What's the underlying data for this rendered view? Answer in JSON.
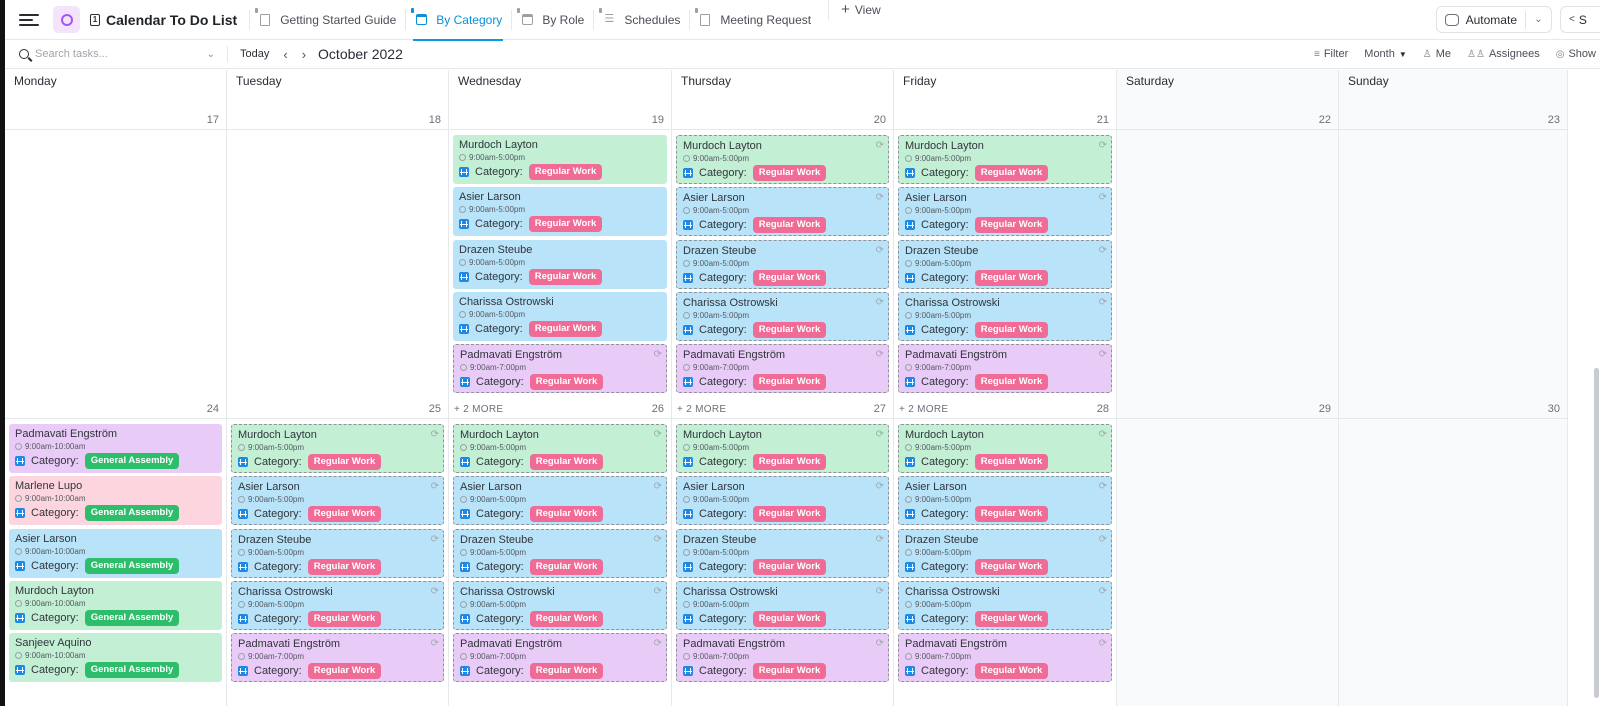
{
  "header": {
    "app_title": "Calendar To Do List",
    "tabs": [
      {
        "label": "Getting Started Guide",
        "icon": "doc-icon",
        "active": false
      },
      {
        "label": "By Category",
        "icon": "calendar-icon",
        "active": true
      },
      {
        "label": "By Role",
        "icon": "calendar-icon",
        "active": false
      },
      {
        "label": "Schedules",
        "icon": "list-icon",
        "active": false
      },
      {
        "label": "Meeting Request",
        "icon": "form-icon",
        "active": false
      }
    ],
    "add_view_label": "View",
    "automate_label": "Automate",
    "share_label": "S"
  },
  "toolbar": {
    "search_placeholder": "Search tasks...",
    "today_label": "Today",
    "month_label": "October 2022",
    "filter_label": "Filter",
    "view_mode_label": "Month",
    "me_label": "Me",
    "assignees_label": "Assignees",
    "show_label": "Show"
  },
  "colors": {
    "accent": "#0b9be3",
    "regular_work_tag": "#f06b95",
    "general_assembly_tag": "#2ebd6b",
    "card_green": "#c3efd5",
    "card_blue": "#b8e3f8",
    "card_purple": "#e9cbf7",
    "card_pink": "#fdd5de"
  },
  "calendar": {
    "day_names": [
      "Monday",
      "Tuesday",
      "Wednesday",
      "Thursday",
      "Friday",
      "Saturday",
      "Sunday"
    ],
    "category_label": "Category:",
    "weeks": [
      {
        "dates": [
          "17",
          "18",
          "19",
          "20",
          "21",
          "22",
          "23"
        ],
        "more": [
          null,
          null,
          null,
          null,
          null,
          null,
          null
        ],
        "days": [
          [],
          [],
          [
            {
              "name": "Murdoch Layton",
              "time": "9:00am-5:00pm",
              "color": "green",
              "tag": "Regular Work",
              "tag_type": "regular",
              "recurring": false
            },
            {
              "name": "Asier Larson",
              "time": "9:00am-5:00pm",
              "color": "blue",
              "tag": "Regular Work",
              "tag_type": "regular",
              "recurring": false
            },
            {
              "name": "Drazen Steube",
              "time": "9:00am-5:00pm",
              "color": "blue",
              "tag": "Regular Work",
              "tag_type": "regular",
              "recurring": false
            },
            {
              "name": "Charissa Ostrowski",
              "time": "9:00am-5:00pm",
              "color": "blue",
              "tag": "Regular Work",
              "tag_type": "regular",
              "recurring": false
            },
            {
              "name": "Padmavati Engström",
              "time": "9:00am-7:00pm",
              "color": "purple",
              "tag": "Regular Work",
              "tag_type": "regular",
              "recurring": true
            }
          ],
          [
            {
              "name": "Murdoch Layton",
              "time": "9:00am-5:00pm",
              "color": "green",
              "tag": "Regular Work",
              "tag_type": "regular",
              "recurring": true
            },
            {
              "name": "Asier Larson",
              "time": "9:00am-5:00pm",
              "color": "blue",
              "tag": "Regular Work",
              "tag_type": "regular",
              "recurring": true
            },
            {
              "name": "Drazen Steube",
              "time": "9:00am-5:00pm",
              "color": "blue",
              "tag": "Regular Work",
              "tag_type": "regular",
              "recurring": true
            },
            {
              "name": "Charissa Ostrowski",
              "time": "9:00am-5:00pm",
              "color": "blue",
              "tag": "Regular Work",
              "tag_type": "regular",
              "recurring": true
            },
            {
              "name": "Padmavati Engström",
              "time": "9:00am-7:00pm",
              "color": "purple",
              "tag": "Regular Work",
              "tag_type": "regular",
              "recurring": true
            }
          ],
          [
            {
              "name": "Murdoch Layton",
              "time": "9:00am-5:00pm",
              "color": "green",
              "tag": "Regular Work",
              "tag_type": "regular",
              "recurring": true
            },
            {
              "name": "Asier Larson",
              "time": "9:00am-5:00pm",
              "color": "blue",
              "tag": "Regular Work",
              "tag_type": "regular",
              "recurring": true
            },
            {
              "name": "Drazen Steube",
              "time": "9:00am-5:00pm",
              "color": "blue",
              "tag": "Regular Work",
              "tag_type": "regular",
              "recurring": true
            },
            {
              "name": "Charissa Ostrowski",
              "time": "9:00am-5:00pm",
              "color": "blue",
              "tag": "Regular Work",
              "tag_type": "regular",
              "recurring": true
            },
            {
              "name": "Padmavati Engström",
              "time": "9:00am-7:00pm",
              "color": "purple",
              "tag": "Regular Work",
              "tag_type": "regular",
              "recurring": true
            }
          ],
          [],
          []
        ]
      },
      {
        "dates": [
          "24",
          "25",
          "26",
          "27",
          "28",
          "29",
          "30"
        ],
        "more": [
          null,
          null,
          "+ 2 MORE",
          "+ 2 MORE",
          "+ 2 MORE",
          null,
          null
        ],
        "days": [
          [
            {
              "name": "Padmavati Engström",
              "time": "9:00am-10:00am",
              "color": "purple",
              "tag": "General Assembly",
              "tag_type": "general",
              "recurring": false
            },
            {
              "name": "Marlene Lupo",
              "time": "9:00am-10:00am",
              "color": "pink",
              "tag": "General Assembly",
              "tag_type": "general",
              "recurring": false
            },
            {
              "name": "Asier Larson",
              "time": "9:00am-10:00am",
              "color": "blue",
              "tag": "General Assembly",
              "tag_type": "general",
              "recurring": false
            },
            {
              "name": "Murdoch Layton",
              "time": "9:00am-10:00am",
              "color": "green",
              "tag": "General Assembly",
              "tag_type": "general",
              "recurring": false
            },
            {
              "name": "Sanjeev Aquino",
              "time": "9:00am-10:00am",
              "color": "green",
              "tag": "General Assembly",
              "tag_type": "general",
              "recurring": false
            }
          ],
          [
            {
              "name": "Murdoch Layton",
              "time": "9:00am-5:00pm",
              "color": "green",
              "tag": "Regular Work",
              "tag_type": "regular",
              "recurring": true
            },
            {
              "name": "Asier Larson",
              "time": "9:00am-5:00pm",
              "color": "blue",
              "tag": "Regular Work",
              "tag_type": "regular",
              "recurring": true
            },
            {
              "name": "Drazen Steube",
              "time": "9:00am-5:00pm",
              "color": "blue",
              "tag": "Regular Work",
              "tag_type": "regular",
              "recurring": true
            },
            {
              "name": "Charissa Ostrowski",
              "time": "9:00am-5:00pm",
              "color": "blue",
              "tag": "Regular Work",
              "tag_type": "regular",
              "recurring": true
            },
            {
              "name": "Padmavati Engström",
              "time": "9:00am-7:00pm",
              "color": "purple",
              "tag": "Regular Work",
              "tag_type": "regular",
              "recurring": true
            }
          ],
          [
            {
              "name": "Murdoch Layton",
              "time": "9:00am-5:00pm",
              "color": "green",
              "tag": "Regular Work",
              "tag_type": "regular",
              "recurring": true
            },
            {
              "name": "Asier Larson",
              "time": "9:00am-5:00pm",
              "color": "blue",
              "tag": "Regular Work",
              "tag_type": "regular",
              "recurring": true
            },
            {
              "name": "Drazen Steube",
              "time": "9:00am-5:00pm",
              "color": "blue",
              "tag": "Regular Work",
              "tag_type": "regular",
              "recurring": true
            },
            {
              "name": "Charissa Ostrowski",
              "time": "9:00am-5:00pm",
              "color": "blue",
              "tag": "Regular Work",
              "tag_type": "regular",
              "recurring": true
            },
            {
              "name": "Padmavati Engström",
              "time": "9:00am-7:00pm",
              "color": "purple",
              "tag": "Regular Work",
              "tag_type": "regular",
              "recurring": true
            }
          ],
          [
            {
              "name": "Murdoch Layton",
              "time": "9:00am-5:00pm",
              "color": "green",
              "tag": "Regular Work",
              "tag_type": "regular",
              "recurring": true
            },
            {
              "name": "Asier Larson",
              "time": "9:00am-5:00pm",
              "color": "blue",
              "tag": "Regular Work",
              "tag_type": "regular",
              "recurring": true
            },
            {
              "name": "Drazen Steube",
              "time": "9:00am-5:00pm",
              "color": "blue",
              "tag": "Regular Work",
              "tag_type": "regular",
              "recurring": true
            },
            {
              "name": "Charissa Ostrowski",
              "time": "9:00am-5:00pm",
              "color": "blue",
              "tag": "Regular Work",
              "tag_type": "regular",
              "recurring": true
            },
            {
              "name": "Padmavati Engström",
              "time": "9:00am-7:00pm",
              "color": "purple",
              "tag": "Regular Work",
              "tag_type": "regular",
              "recurring": true
            }
          ],
          [
            {
              "name": "Murdoch Layton",
              "time": "9:00am-5:00pm",
              "color": "green",
              "tag": "Regular Work",
              "tag_type": "regular",
              "recurring": true
            },
            {
              "name": "Asier Larson",
              "time": "9:00am-5:00pm",
              "color": "blue",
              "tag": "Regular Work",
              "tag_type": "regular",
              "recurring": true
            },
            {
              "name": "Drazen Steube",
              "time": "9:00am-5:00pm",
              "color": "blue",
              "tag": "Regular Work",
              "tag_type": "regular",
              "recurring": true
            },
            {
              "name": "Charissa Ostrowski",
              "time": "9:00am-5:00pm",
              "color": "blue",
              "tag": "Regular Work",
              "tag_type": "regular",
              "recurring": true
            },
            {
              "name": "Padmavati Engström",
              "time": "9:00am-7:00pm",
              "color": "purple",
              "tag": "Regular Work",
              "tag_type": "regular",
              "recurring": true
            }
          ],
          [],
          []
        ]
      }
    ]
  }
}
